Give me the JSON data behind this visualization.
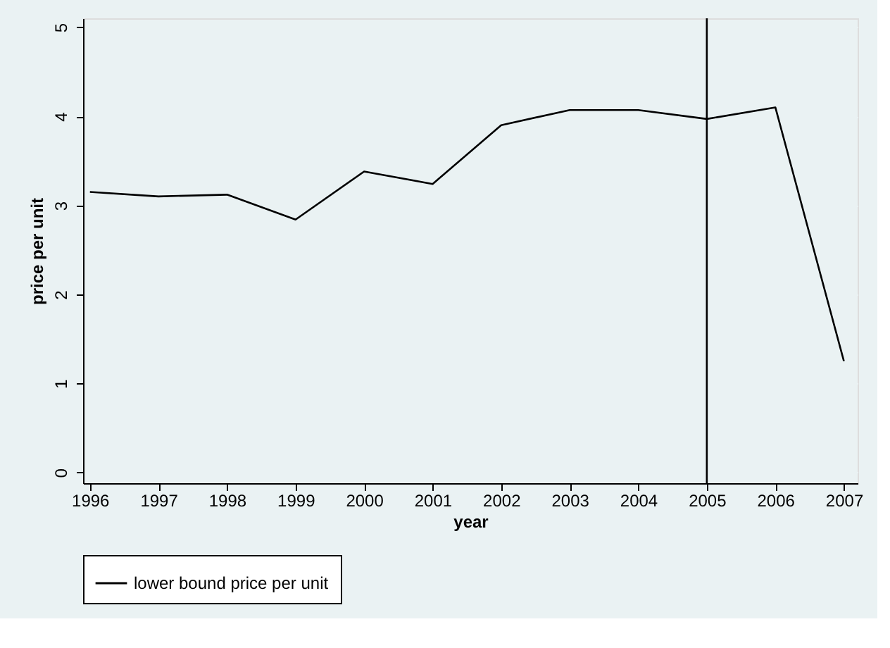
{
  "chart_data": {
    "type": "line",
    "xlabel": "year",
    "ylabel": "price per unit",
    "x": [
      1996,
      1997,
      1998,
      1999,
      2000,
      2001,
      2002,
      2003,
      2004,
      2005,
      2006,
      2007
    ],
    "series": [
      {
        "name": "lower bound price per unit",
        "color": "#000000",
        "values": [
          3.15,
          3.1,
          3.12,
          2.84,
          3.38,
          3.24,
          3.9,
          4.07,
          4.07,
          3.97,
          4.1,
          1.25
        ]
      }
    ],
    "xlim": [
      1995.9,
      2007.2
    ],
    "xticks": [
      1996,
      1997,
      1998,
      1999,
      2000,
      2001,
      2002,
      2003,
      2004,
      2005,
      2006,
      2007
    ],
    "ylim": [
      -0.12,
      5.1
    ],
    "yticks": [
      0,
      1,
      2,
      3,
      4,
      5
    ],
    "ref_lines": [
      {
        "axis": "x",
        "value": 2005,
        "color": "#000000"
      }
    ],
    "grid": "y",
    "legend": "bottom",
    "marker": "none",
    "line_style": "solid"
  }
}
